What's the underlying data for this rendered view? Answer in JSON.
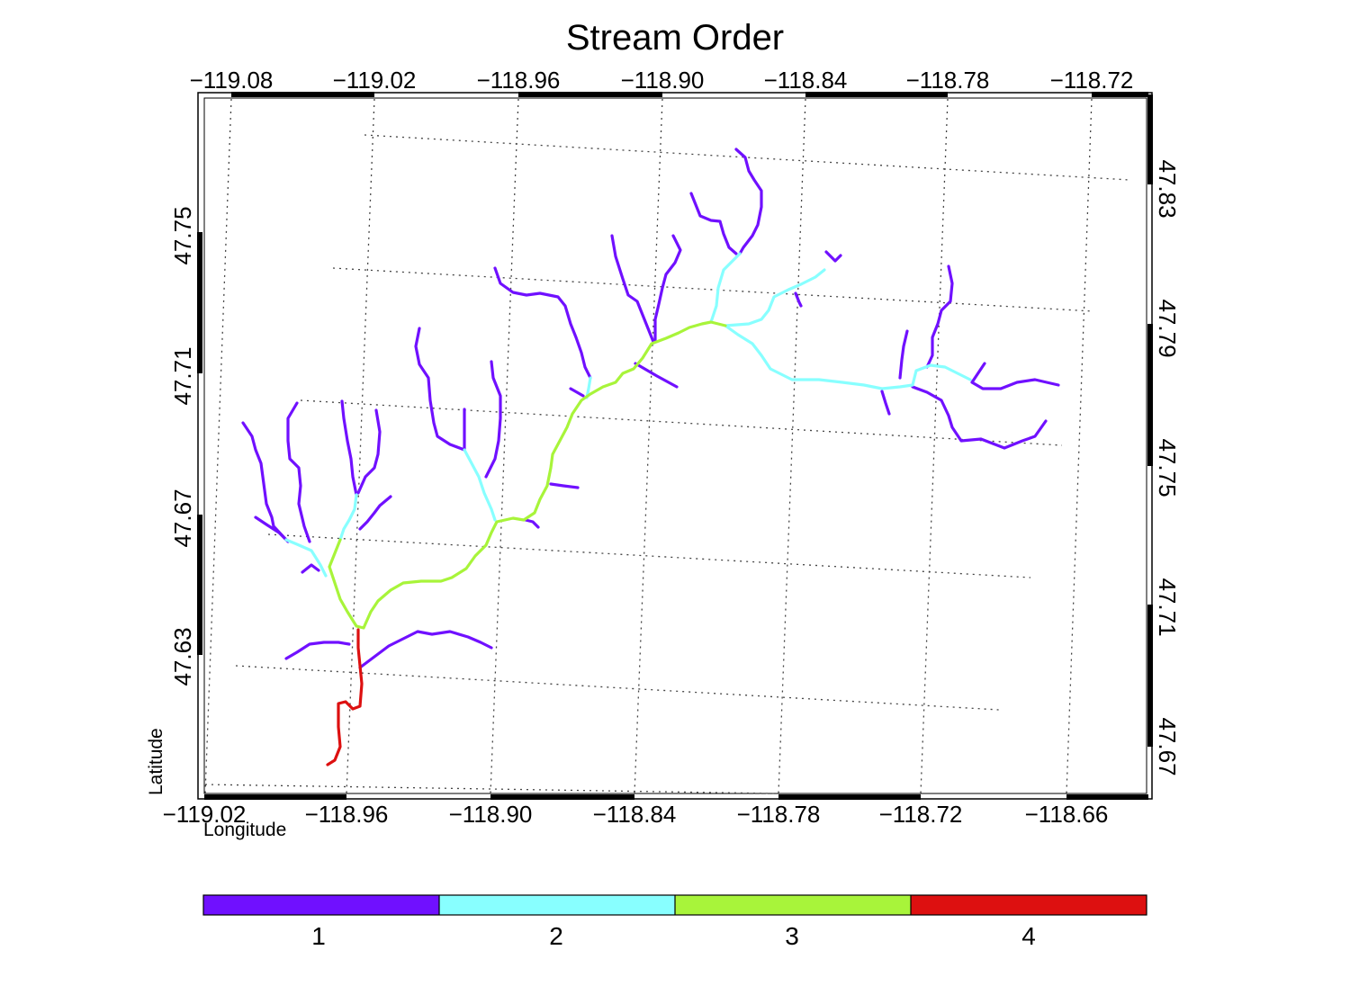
{
  "title": "Stream Order",
  "axes": {
    "xlabel": "Longitude",
    "ylabel": "Latitude",
    "top_ticks": [
      "−119.08",
      "−119.02",
      "−118.96",
      "−118.90",
      "−118.84",
      "−118.78",
      "−118.72"
    ],
    "bottom_ticks": [
      "−119.02",
      "−118.96",
      "−118.90",
      "−118.84",
      "−118.78",
      "−118.72",
      "−118.66"
    ],
    "left_ticks": [
      "47.75",
      "47.71",
      "47.67",
      "47.63"
    ],
    "right_ticks": [
      "47.83",
      "47.79",
      "47.75",
      "47.71",
      "47.67"
    ]
  },
  "colorbar": {
    "labels": [
      "1",
      "2",
      "3",
      "4"
    ],
    "colors": [
      "#7010ff",
      "#88ffff",
      "#a8f43a",
      "#dd1010"
    ]
  },
  "stream_orders": {
    "1": "#7010ff",
    "2": "#88ffff",
    "3": "#a8f43a",
    "4": "#dd1010"
  }
}
